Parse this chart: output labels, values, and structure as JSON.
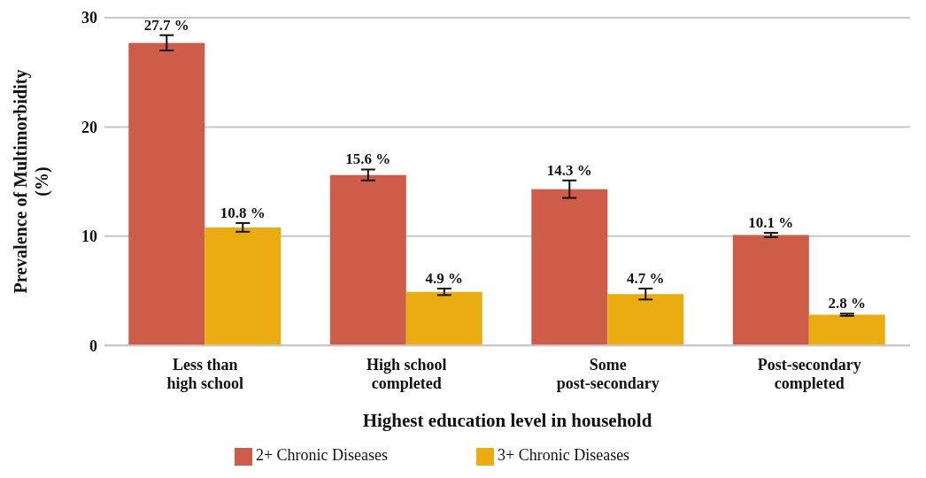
{
  "chart_data": {
    "type": "bar",
    "xlabel": "Highest education level in household",
    "ylabel": "Prevalence of Multimorbidity (%)",
    "categories": [
      "Less than high school",
      "High school completed",
      "Some post-secondary",
      "Post-secondary completed"
    ],
    "series": [
      {
        "name": "2+ Chronic Diseases",
        "color": "#cd5c48",
        "values": [
          27.7,
          15.6,
          14.3,
          10.1
        ],
        "errors": [
          0.7,
          0.5,
          0.8,
          0.2
        ],
        "value_labels": [
          "27.7 %",
          "15.6 %",
          "14.3 %",
          "10.1 %"
        ]
      },
      {
        "name": "3+ Chronic Diseases",
        "color": "#ebac12",
        "values": [
          10.8,
          4.9,
          4.7,
          2.8
        ],
        "errors": [
          0.4,
          0.3,
          0.5,
          0.1
        ],
        "value_labels": [
          "10.8 %",
          "4.9 %",
          "4.7 %",
          "2.8 %"
        ]
      }
    ],
    "ylim": [
      0,
      30
    ],
    "yticks": [
      0,
      10,
      20,
      30
    ],
    "grid": "y",
    "legend": "bottom"
  }
}
